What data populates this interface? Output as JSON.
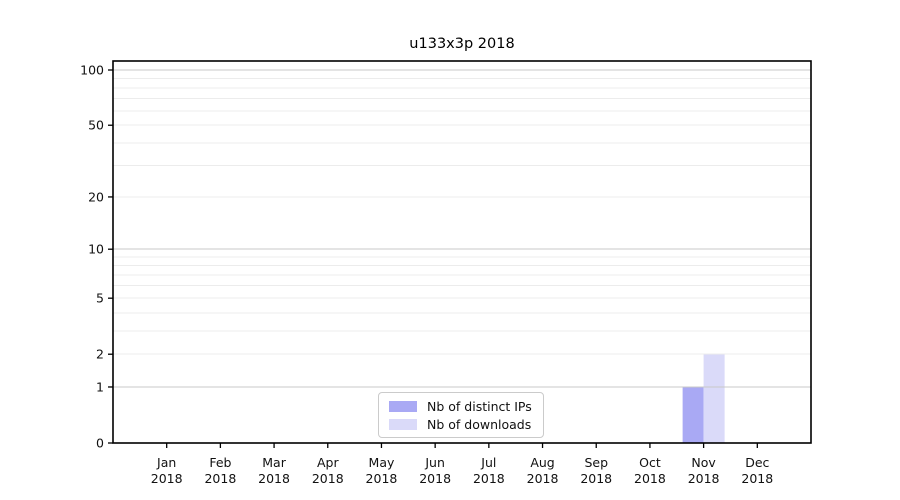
{
  "figure": {
    "background": "#ffffff"
  },
  "chart_data": {
    "type": "bar",
    "title": "u133x3p 2018",
    "categories": [
      "Jan 2018",
      "Feb 2018",
      "Mar 2018",
      "Apr 2018",
      "May 2018",
      "Jun 2018",
      "Jul 2018",
      "Aug 2018",
      "Sep 2018",
      "Oct 2018",
      "Nov 2018",
      "Dec 2018"
    ],
    "series": [
      {
        "name": "Nb of distinct IPs",
        "color": "#a9a9f4",
        "values": [
          0,
          0,
          0,
          0,
          0,
          0,
          0,
          0,
          0,
          0,
          1,
          0
        ]
      },
      {
        "name": "Nb of downloads",
        "color": "#dadaf9",
        "values": [
          0,
          0,
          0,
          0,
          0,
          0,
          0,
          0,
          0,
          0,
          2,
          0
        ]
      }
    ],
    "xlabel": "",
    "ylabel": "",
    "yscale": "log10(value+1)",
    "ylim": [
      0,
      100
    ],
    "yticks": [
      0,
      1,
      2,
      5,
      10,
      20,
      50,
      100
    ],
    "ymajor_gridlines": [
      1,
      10,
      100
    ],
    "yminor_gridlines": [
      2,
      3,
      4,
      5,
      6,
      7,
      8,
      9,
      20,
      30,
      40,
      50,
      60,
      70,
      80,
      90
    ],
    "grid": "horizontal",
    "legend_position": "bottom-center-inside",
    "colors": {
      "axis": "#000000",
      "tick_label": "#111111",
      "major_grid": "#c8c8c8",
      "minor_grid": "#ececec"
    }
  }
}
